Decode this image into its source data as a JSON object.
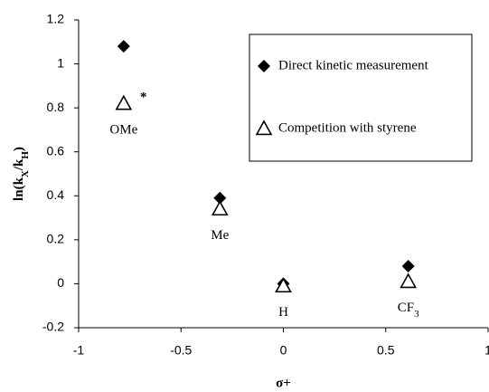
{
  "chart_data": {
    "type": "scatter",
    "x_label": "σ+",
    "y_label": [
      "ln(k",
      "X",
      "/k",
      "H",
      ")"
    ],
    "xlim": [
      -1,
      1
    ],
    "xticks": [
      -1,
      -0.5,
      0,
      0.5,
      1
    ],
    "ylim": [
      -0.2,
      1.2
    ],
    "yticks": [
      -0.2,
      0,
      0.2,
      0.4,
      0.6,
      0.8,
      1,
      1.2
    ],
    "legend": "upper right",
    "series": [
      {
        "name": "Direct kinetic measurement",
        "marker": "diamond",
        "color": "#000000",
        "x": [
          -0.78,
          -0.31,
          0,
          0.61
        ],
        "values": [
          1.08,
          0.39,
          0,
          0.08
        ]
      },
      {
        "name": "Competition with styrene",
        "marker": "triangle",
        "color": "#000000",
        "x": [
          -0.78,
          -0.31,
          0,
          0.61
        ],
        "values": [
          0.82,
          0.34,
          -0.01,
          0.01
        ]
      }
    ],
    "point_labels": [
      [
        "OMe"
      ],
      [
        "Me"
      ],
      [
        "H"
      ],
      [
        "CF",
        "3"
      ]
    ],
    "asterisk": "*"
  }
}
